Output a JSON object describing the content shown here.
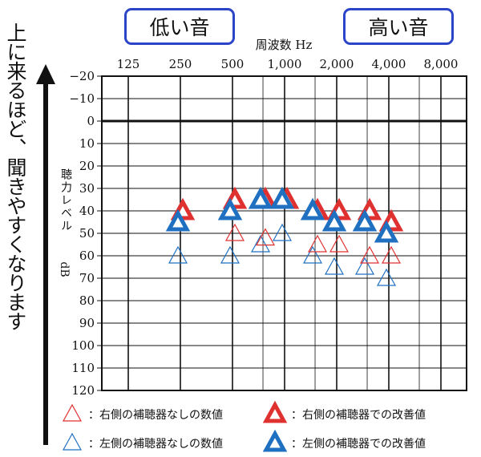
{
  "sidebar_text": "上に来るほど、聞きやすくなります",
  "label_low": "低い音",
  "label_high": "高い音",
  "chart_data": {
    "type": "scatter",
    "title": "",
    "xlabel": "周波数 Hz",
    "ylabel": "聴力レベル dB",
    "x_ticks": [
      "125",
      "250",
      "500",
      "1,000",
      "2,000",
      "4,000",
      "8,000"
    ],
    "y_ticks": [
      "−20",
      "−10",
      "0",
      "10",
      "20",
      "30",
      "40",
      "50",
      "60",
      "70",
      "80",
      "90",
      "100",
      "110",
      "120"
    ],
    "x_scale": "log2",
    "x_range": [
      125,
      8000
    ],
    "ylim": [
      -20,
      120
    ],
    "y_inverted": true,
    "grid": true,
    "series": [
      {
        "name": "右側の補聴器なしの数値",
        "color": "#e03131",
        "filled": false,
        "points": [
          [
            250,
            40
          ],
          [
            500,
            50
          ],
          [
            750,
            52
          ],
          [
            1500,
            55
          ],
          [
            2000,
            55
          ],
          [
            3000,
            60
          ],
          [
            4000,
            60
          ]
        ]
      },
      {
        "name": "左側の補聴器なしの数値",
        "color": "#1f70c1",
        "filled": false,
        "points": [
          [
            250,
            60
          ],
          [
            500,
            60
          ],
          [
            750,
            55
          ],
          [
            1000,
            50
          ],
          [
            1500,
            60
          ],
          [
            2000,
            65
          ],
          [
            3000,
            65
          ],
          [
            4000,
            70
          ]
        ]
      },
      {
        "name": "右側の補聴器での改善値",
        "color": "#e03131",
        "filled": true,
        "points": [
          [
            250,
            40
          ],
          [
            500,
            35
          ],
          [
            750,
            35
          ],
          [
            1000,
            35
          ],
          [
            1500,
            40
          ],
          [
            2000,
            40
          ],
          [
            3000,
            40
          ],
          [
            4000,
            45
          ]
        ]
      },
      {
        "name": "左側の補聴器での改善値",
        "color": "#1f70c1",
        "filled": true,
        "points": [
          [
            250,
            45
          ],
          [
            500,
            40
          ],
          [
            750,
            35
          ],
          [
            1000,
            35
          ],
          [
            1500,
            40
          ],
          [
            2000,
            45
          ],
          [
            3000,
            45
          ],
          [
            4000,
            50
          ]
        ]
      }
    ],
    "legend_position": "bottom"
  }
}
